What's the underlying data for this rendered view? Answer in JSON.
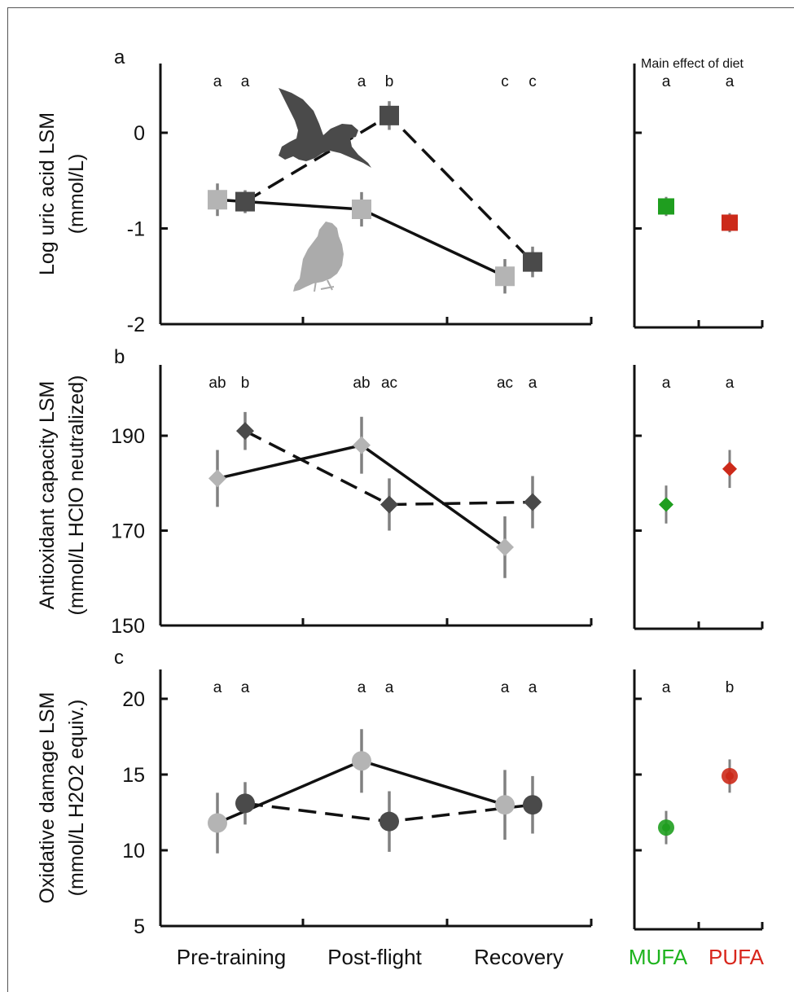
{
  "header": {
    "main_effect_title": "Main effect of diet"
  },
  "x_categories": [
    "Pre-training",
    "Post-flight",
    "Recovery"
  ],
  "diet_labels": [
    {
      "label": "MUFA",
      "color": "#1db31d"
    },
    {
      "label": "PUFA",
      "color": "#d8261c"
    }
  ],
  "colors": {
    "series_a": "#b4b4b4",
    "series_b": "#4a4a4a",
    "errorbar": "#808080",
    "mufa": "#1f9e1f",
    "pufa": "#cc2a1a"
  },
  "silhouettes": {
    "flying_bird": "flying-bird-icon",
    "perched_bird": "perched-bird-icon"
  },
  "chart_data": [
    {
      "panel": "a",
      "type": "line",
      "marker": "square",
      "ylabel": [
        "Log uric acid LSM",
        "(mmol/L)"
      ],
      "ylim": [
        -2,
        0.6
      ],
      "yticks": [
        0,
        -1,
        -2
      ],
      "ytick_labels": [
        "0",
        "-1",
        "-2"
      ],
      "x": [
        "Pre-training",
        "Post-flight",
        "Recovery"
      ],
      "series": [
        {
          "values": [
            -0.7,
            -0.8,
            -1.5
          ],
          "err": [
            0.17,
            0.18,
            0.18
          ],
          "line": "solid"
        },
        {
          "values": [
            -0.72,
            0.18,
            -1.35
          ],
          "err": [
            0.12,
            0.15,
            0.16
          ],
          "line": "dashed"
        }
      ],
      "letters": [
        [
          "a",
          "a"
        ],
        [
          "a",
          "b"
        ],
        [
          "c",
          "c"
        ]
      ],
      "diet": {
        "mufa": -0.77,
        "mufa_err": 0.1,
        "pufa": -0.94,
        "pufa_err": 0.1,
        "letters": [
          "a",
          "a"
        ]
      }
    },
    {
      "panel": "b",
      "type": "line",
      "marker": "diamond",
      "ylabel": [
        "Antioxidant capacity LSM",
        "(mmol/L HClO neutralized)"
      ],
      "ylim": [
        150,
        200
      ],
      "yticks": [
        190,
        170,
        150
      ],
      "ytick_labels": [
        "190",
        "170",
        "150"
      ],
      "x": [
        "Pre-training",
        "Post-flight",
        "Recovery"
      ],
      "series": [
        {
          "values": [
            181,
            188,
            166.5
          ],
          "err": [
            6,
            6,
            6.5
          ],
          "line": "solid"
        },
        {
          "values": [
            191,
            175.5,
            176
          ],
          "err": [
            4,
            5.5,
            5.5
          ],
          "line": "dashed"
        }
      ],
      "letters": [
        [
          "ab",
          "b"
        ],
        [
          "ab",
          "ac"
        ],
        [
          "ac",
          "a"
        ]
      ],
      "diet": {
        "mufa": 175.5,
        "mufa_err": 4,
        "pufa": 183,
        "pufa_err": 4,
        "letters": [
          "a",
          "a"
        ]
      }
    },
    {
      "panel": "c",
      "type": "line",
      "marker": "circle",
      "ylabel": [
        "Oxidative damage LSM",
        "(mmol/L H2O2 equiv.)"
      ],
      "ylim": [
        5,
        22
      ],
      "yticks": [
        20,
        15,
        10,
        5
      ],
      "ytick_labels": [
        "20",
        "15",
        "10",
        "5"
      ],
      "x": [
        "Pre-training",
        "Post-flight",
        "Recovery"
      ],
      "series": [
        {
          "values": [
            11.8,
            15.9,
            13.0
          ],
          "err": [
            2,
            2.1,
            2.3
          ],
          "line": "solid"
        },
        {
          "values": [
            13.1,
            11.9,
            13.0
          ],
          "err": [
            1.4,
            2,
            1.9
          ],
          "line": "dashed"
        }
      ],
      "letters": [
        [
          "a",
          "a"
        ],
        [
          "a",
          "a"
        ],
        [
          "a",
          "a"
        ]
      ],
      "diet": {
        "mufa": 11.5,
        "mufa_err": 1.1,
        "pufa": 14.9,
        "pufa_err": 1.1,
        "letters": [
          "a",
          "b"
        ]
      }
    }
  ]
}
